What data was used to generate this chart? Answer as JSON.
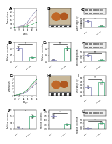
{
  "background": "#ffffff",
  "panel_A": {
    "label": "A",
    "lines": [
      {
        "color": "#9999bb",
        "x": [
          0,
          7,
          14,
          21,
          28,
          35
        ],
        "y": [
          0.05,
          0.12,
          0.3,
          0.7,
          1.5,
          2.2
        ]
      },
      {
        "color": "#bb99aa",
        "x": [
          0,
          7,
          14,
          21,
          28,
          35
        ],
        "y": [
          0.05,
          0.1,
          0.2,
          0.45,
          0.9,
          1.5
        ]
      },
      {
        "color": "#44aa66",
        "x": [
          0,
          7,
          14,
          21,
          28,
          35
        ],
        "y": [
          0.05,
          0.07,
          0.12,
          0.22,
          0.4,
          0.7
        ]
      }
    ],
    "xlabel": "Days",
    "ylabel": "Tumor volume",
    "ylim": [
      0,
      2.5
    ],
    "xlim": [
      0,
      35
    ],
    "yticks": [
      0,
      0.5,
      1.0,
      1.5,
      2.0,
      2.5
    ],
    "xticks": [
      0,
      7,
      14,
      21,
      28,
      35
    ]
  },
  "panel_C": {
    "label": "C",
    "categories": [
      "shNC",
      "shHOXB7"
    ],
    "values": [
      0.75,
      0.2
    ],
    "errors": [
      0.1,
      0.04
    ],
    "dot_colors": [
      "#8888bb",
      "#44aa77"
    ],
    "bar_color": "#ffffff",
    "edge_colors": [
      "#8888bb",
      "#44aa77"
    ],
    "ylabel": "Tumor weight (g)",
    "ylim": [
      0,
      1.1
    ],
    "yticks": [
      0,
      0.2,
      0.4,
      0.6,
      0.8,
      1.0
    ],
    "sig_text": "*",
    "sig_y": 0.92
  },
  "panel_D": {
    "label": "D",
    "categories": [
      "shNC",
      "shHOXB7"
    ],
    "values": [
      1.0,
      0.3
    ],
    "errors": [
      0.15,
      0.06
    ],
    "dot_colors": [
      "#8888bb",
      "#44aa77"
    ],
    "bar_color": "#ffffff",
    "edge_colors": [
      "#8888bb",
      "#44aa77"
    ],
    "ylabel": "Relative expression",
    "ylim": [
      0,
      1.5
    ],
    "yticks": [
      0,
      0.5,
      1.0,
      1.5
    ],
    "sig_text": "*",
    "sig_y": 1.3
  },
  "panel_E": {
    "label": "E",
    "categories": [
      "shNC",
      "shHOXB7"
    ],
    "values": [
      0.12,
      1.0
    ],
    "errors": [
      0.02,
      0.15
    ],
    "dot_colors": [
      "#8888bb",
      "#44aa77"
    ],
    "bar_color": "#ffffff",
    "edge_colors": [
      "#8888bb",
      "#44aa77"
    ],
    "ylabel": "Relative expression",
    "ylim": [
      0,
      1.5
    ],
    "yticks": [
      0,
      0.5,
      1.0,
      1.5
    ],
    "sig_text": "**",
    "sig_y": 1.3
  },
  "panel_F_bars": {
    "label": "",
    "categories": [
      "shNC",
      "shHOXB7"
    ],
    "values": [
      1.0,
      0.18
    ],
    "errors": [
      0.12,
      0.04
    ],
    "dot_colors": [
      "#8888bb",
      "#44aa77"
    ],
    "bar_color": "#ffffff",
    "edge_colors": [
      "#8888bb",
      "#44aa77"
    ],
    "ylabel": "Relative expression",
    "ylim": [
      0,
      1.5
    ],
    "yticks": [
      0,
      0.5,
      1.0,
      1.5
    ],
    "sig_text": "**",
    "sig_y": 1.3
  },
  "panel_G": {
    "label": "G",
    "lines": [
      {
        "color": "#9999bb",
        "x": [
          0,
          7,
          14,
          21,
          28,
          35
        ],
        "y": [
          0.05,
          0.2,
          0.55,
          1.2,
          2.5,
          3.8
        ]
      },
      {
        "color": "#bb99aa",
        "x": [
          0,
          7,
          14,
          21,
          28,
          35
        ],
        "y": [
          0.05,
          0.25,
          0.7,
          1.6,
          3.0,
          4.5
        ]
      },
      {
        "color": "#44aa66",
        "x": [
          0,
          7,
          14,
          21,
          28,
          35
        ],
        "y": [
          0.05,
          0.28,
          0.8,
          1.8,
          3.4,
          5.0
        ]
      }
    ],
    "xlabel": "Days",
    "ylabel": "Tumor volume",
    "ylim": [
      0,
      6.0
    ],
    "xlim": [
      0,
      35
    ],
    "yticks": [
      0,
      1,
      2,
      3,
      4,
      5,
      6
    ],
    "xticks": [
      0,
      7,
      14,
      21,
      28,
      35
    ]
  },
  "panel_I": {
    "label": "I",
    "categories": [
      "shNC",
      "shHOXB7"
    ],
    "values": [
      0.45,
      0.75
    ],
    "errors": [
      0.07,
      0.1
    ],
    "dot_colors": [
      "#8888bb",
      "#44aa77"
    ],
    "bar_color": "#ffffff",
    "edge_colors": [
      "#8888bb",
      "#44aa77"
    ],
    "ylabel": "Tumor weight (g)",
    "ylim": [
      0,
      1.1
    ],
    "yticks": [
      0,
      0.2,
      0.4,
      0.6,
      0.8,
      1.0
    ],
    "sig_text": "*",
    "sig_y": 0.92
  },
  "panel_J": {
    "label": "J",
    "categories": [
      "shNC",
      "shHOXB7"
    ],
    "values": [
      0.15,
      1.0
    ],
    "errors": [
      0.03,
      0.14
    ],
    "dot_colors": [
      "#8888bb",
      "#44aa77"
    ],
    "bar_color": "#ffffff",
    "edge_colors": [
      "#8888bb",
      "#44aa77"
    ],
    "ylabel": "Relative expression",
    "ylim": [
      0,
      1.5
    ],
    "yticks": [
      0,
      0.5,
      1.0,
      1.5
    ],
    "sig_text": "*",
    "sig_y": 1.3
  },
  "panel_K": {
    "label": "K",
    "categories": [
      "shNC",
      "shHOXB7"
    ],
    "values": [
      0.75,
      0.28
    ],
    "errors": [
      0.1,
      0.05
    ],
    "dot_colors": [
      "#8888bb",
      "#44aa77"
    ],
    "bar_color": "#ffffff",
    "edge_colors": [
      "#8888bb",
      "#44aa77"
    ],
    "ylabel": "Relative expression",
    "ylim": [
      0,
      1.1
    ],
    "yticks": [
      0,
      0.25,
      0.5,
      0.75,
      1.0
    ],
    "sig_text": "*",
    "sig_y": 0.92
  },
  "panel_L_bars": {
    "label": "",
    "categories": [
      "shNC",
      "shHOXB7"
    ],
    "values": [
      0.18,
      1.0
    ],
    "errors": [
      0.04,
      0.13
    ],
    "dot_colors": [
      "#8888bb",
      "#44aa77"
    ],
    "bar_color": "#ffffff",
    "edge_colors": [
      "#8888bb",
      "#44aa77"
    ],
    "ylabel": "Relative expression",
    "ylim": [
      0,
      1.5
    ],
    "yticks": [
      0,
      0.5,
      1.0,
      1.5
    ],
    "sig_text": "*",
    "sig_y": 1.3
  },
  "wb_bg": "#f0f0f0",
  "wb_band_dark": "#555555",
  "wb_band_light": "#aaaaaa",
  "tumor_bg": "#c8b89a",
  "tumor_left_color": "#c06828",
  "tumor_right_color": "#b05820",
  "ruler_color": "#777777"
}
